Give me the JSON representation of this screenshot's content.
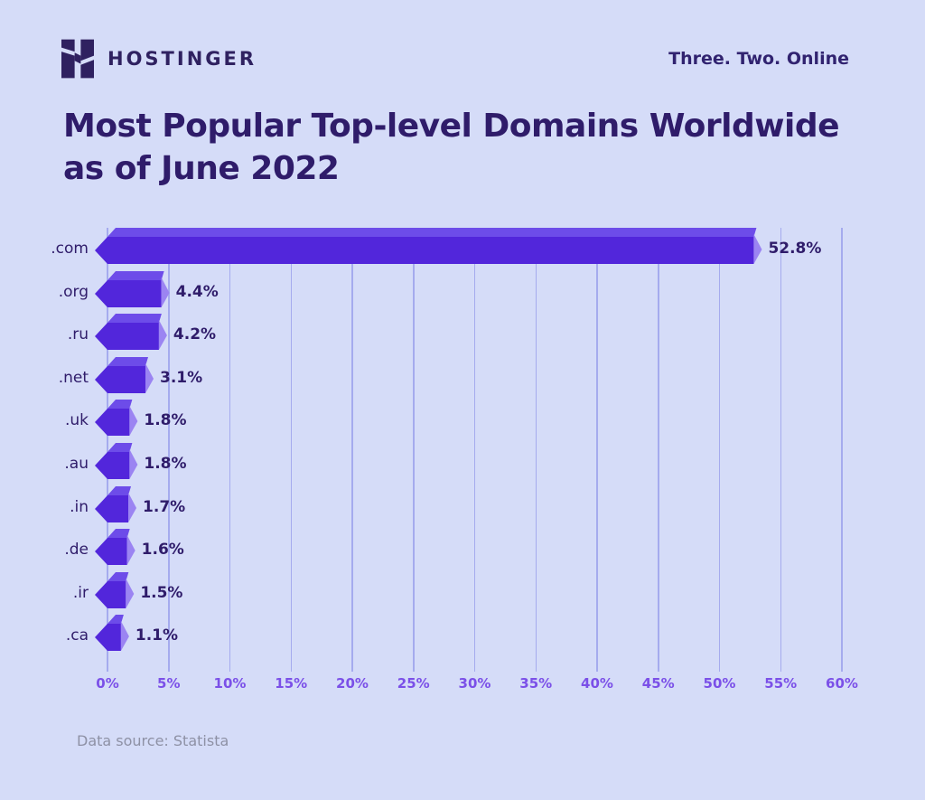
{
  "header": {
    "brand": "HOSTINGER",
    "logo_icon": "hostinger-h-logo",
    "tagline": "Three. Two. Online"
  },
  "title": {
    "line1": "Most Popular Top-level Domains Worldwide",
    "line2": "as of June 2022"
  },
  "chart_data": {
    "type": "bar",
    "orientation": "horizontal",
    "title": "Most Popular Top-level Domains Worldwide as of June 2022",
    "categories": [
      ".com",
      ".org",
      ".ru",
      ".net",
      ".uk",
      ".au",
      ".in",
      ".de",
      ".ir",
      ".ca"
    ],
    "values": [
      52.8,
      4.4,
      4.2,
      3.1,
      1.8,
      1.8,
      1.7,
      1.6,
      1.5,
      1.1
    ],
    "value_labels": [
      "52.8%",
      "4.4%",
      "4.2%",
      "3.1%",
      "1.8%",
      "1.8%",
      "1.7%",
      "1.6%",
      "1.5%",
      "1.1%"
    ],
    "xlabel": "",
    "ylabel": "",
    "xlim": [
      0,
      60
    ],
    "grid": true,
    "x_ticks": [
      "0%",
      "5%",
      "10%",
      "15%",
      "20%",
      "25%",
      "30%",
      "35%",
      "40%",
      "45%",
      "50%",
      "55%",
      "60%"
    ],
    "tick_values": [
      0,
      5,
      10,
      15,
      20,
      25,
      30,
      35,
      40,
      45,
      50,
      55,
      60
    ],
    "colors": {
      "background": "#d5dcf8",
      "bar_main": "#5226db",
      "bar_top": "#6d4ce9",
      "bar_cap": "#9b84f2",
      "grid_line": "#a5abee",
      "axis_label": "#7b50e8",
      "text_dark": "#2f1c6a",
      "source_text": "#8e91a5"
    }
  },
  "footer": {
    "source": "Data source: Statista"
  }
}
